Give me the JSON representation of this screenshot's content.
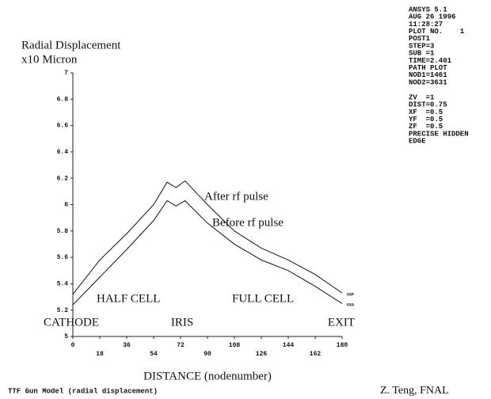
{
  "chart_data": {
    "type": "line",
    "y_label_lines": [
      "Radial Displacement",
      "x10 Micron"
    ],
    "x_label": "DISTANCE (nodenumber)",
    "x": [
      0,
      18,
      36,
      54,
      63,
      69,
      75,
      90,
      108,
      126,
      144,
      162,
      180
    ],
    "series": [
      {
        "name": "After rf pulse",
        "end_label": "UXP",
        "color": "#111111",
        "values": [
          5.32,
          5.58,
          5.78,
          6.0,
          6.17,
          6.13,
          6.18,
          6.0,
          5.8,
          5.67,
          5.58,
          5.47,
          5.33
        ]
      },
      {
        "name": "Before rf pulse",
        "end_label": "UXA",
        "color": "#111111",
        "values": [
          5.24,
          5.45,
          5.66,
          5.88,
          6.03,
          5.99,
          6.03,
          5.86,
          5.7,
          5.58,
          5.5,
          5.38,
          5.25
        ]
      }
    ],
    "xlim": [
      0,
      180
    ],
    "xticks": [
      0,
      18,
      36,
      54,
      72,
      90,
      108,
      126,
      144,
      162,
      180
    ],
    "ylim": [
      5,
      7
    ],
    "yticks": [
      5,
      5.2,
      5.4,
      5.6,
      5.8,
      6,
      6.2,
      6.4,
      6.6,
      6.8,
      7
    ],
    "annotations": [
      "HALF CELL",
      "FULL CELL",
      "CATHODE",
      "IRIS",
      "EXIT"
    ],
    "info_block_1": [
      "ANSYS 5.1",
      "AUG 26 1996",
      "11:28:27",
      "PLOT NO.    1",
      "POST1",
      "STEP=3",
      "SUB =1",
      "TIME=2.401",
      "PATH PLOT",
      "NOD1=1461",
      "NOD2=3631"
    ],
    "info_block_2": [
      "ZV  =1",
      "DIST=0.75",
      "XF  =0.5",
      "YF  =0.5",
      "ZF  =0.5",
      "PRECISE HIDDEN",
      "EDGE"
    ],
    "footer_left": "TTF Gun Model (radial displacement)",
    "footer_right": "Z. Teng, FNAL"
  }
}
